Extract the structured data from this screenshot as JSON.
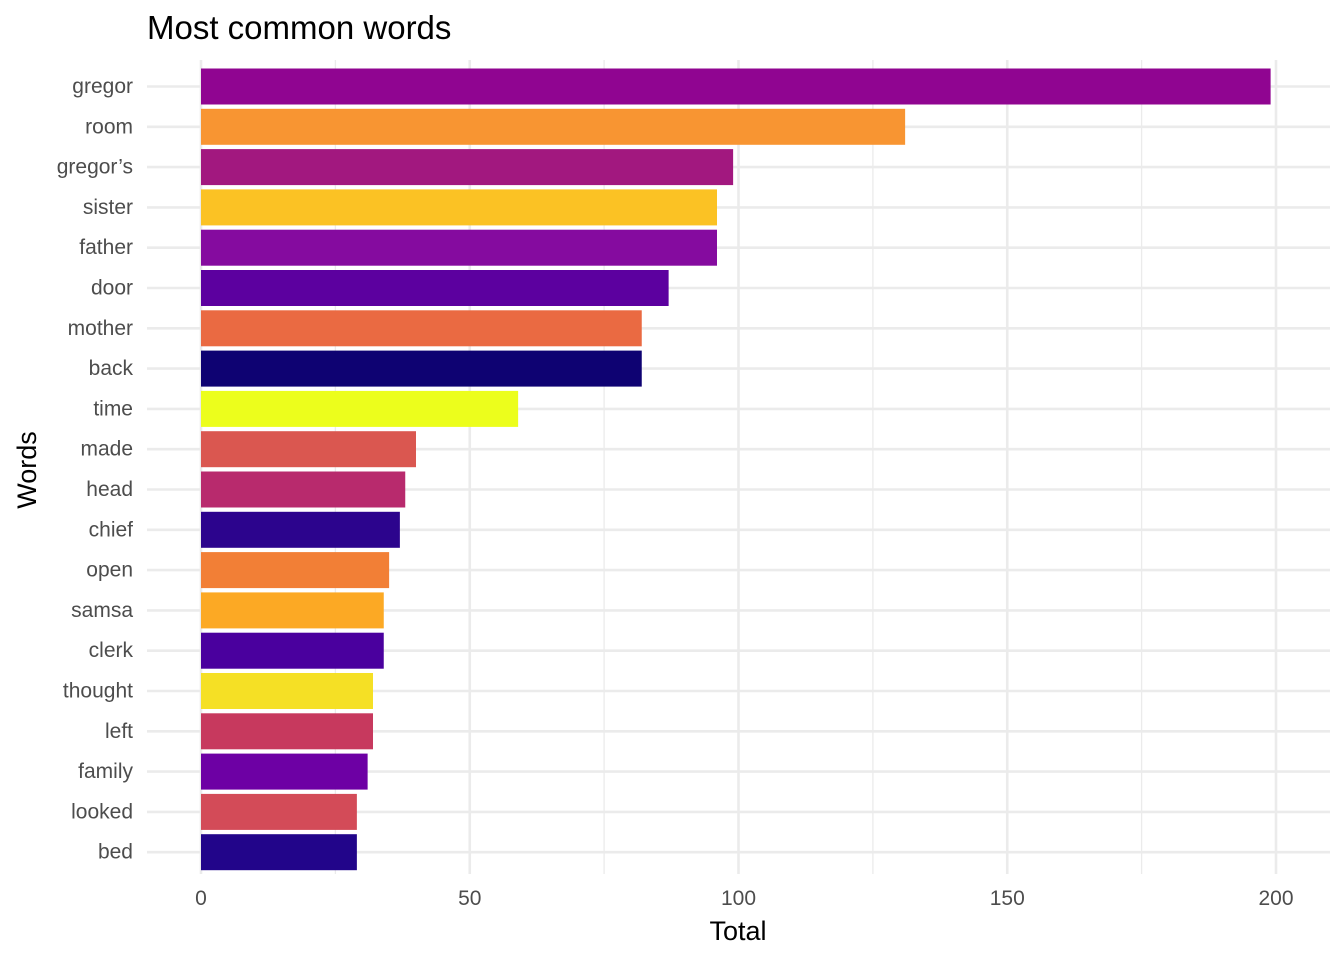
{
  "chart_data": {
    "type": "bar",
    "orientation": "horizontal",
    "title": "Most common words",
    "xlabel": "Total",
    "ylabel": "Words",
    "xlim": [
      0,
      200
    ],
    "x_ticks": [
      0,
      50,
      100,
      150,
      200
    ],
    "grid": true,
    "legend": "none",
    "categories": [
      "gregor",
      "room",
      "gregor’s",
      "sister",
      "father",
      "door",
      "mother",
      "back",
      "time",
      "made",
      "head",
      "chief",
      "open",
      "samsa",
      "clerk",
      "thought",
      "left",
      "family",
      "looked",
      "bed"
    ],
    "values": [
      199,
      131,
      99,
      96,
      96,
      87,
      82,
      82,
      59,
      40,
      38,
      37,
      35,
      34,
      34,
      32,
      32,
      31,
      29,
      29
    ],
    "colors": [
      "#900591",
      "#F89532",
      "#A2187F",
      "#FBC224",
      "#850B9F",
      "#5C009F",
      "#EA6A42",
      "#0E0272",
      "#ECFE1C",
      "#DA5750",
      "#B82A6D",
      "#2C048D",
      "#F27F36",
      "#FCA924",
      "#4A009E",
      "#F5E025",
      "#C7395E",
      "#6D00A4",
      "#D34B58",
      "#22058A"
    ]
  }
}
